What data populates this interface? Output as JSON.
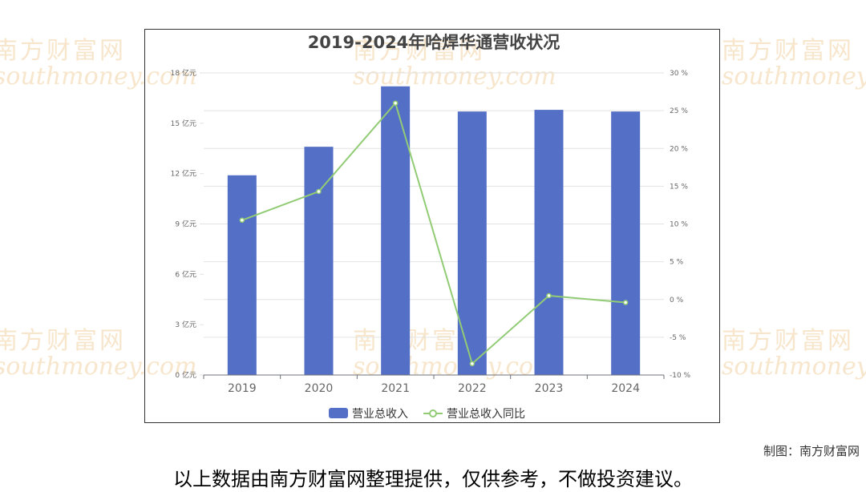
{
  "watermark": {
    "cn": "南方财富网",
    "en": "southmoney.com"
  },
  "chart_data": {
    "type": "bar",
    "title": "2019-2024年哈焊华通营收状况",
    "categories": [
      "2019",
      "2020",
      "2021",
      "2022",
      "2023",
      "2024"
    ],
    "series": [
      {
        "name": "营业总收入",
        "type": "bar",
        "axis": "left",
        "color": "#546fc6",
        "values": [
          11.9,
          13.6,
          17.2,
          15.7,
          15.8,
          15.7
        ]
      },
      {
        "name": "营业总收入同比",
        "type": "line",
        "axis": "right",
        "color": "#91cc75",
        "values": [
          10.5,
          14.3,
          26.0,
          -8.5,
          0.5,
          -0.4
        ]
      }
    ],
    "y_left": {
      "min": 0,
      "max": 18,
      "ticks": [
        0,
        3,
        6,
        9,
        12,
        15,
        18
      ],
      "tick_labels": [
        "0 亿元",
        "3 亿元",
        "6 亿元",
        "9 亿元",
        "12 亿元",
        "15 亿元",
        "18 亿元"
      ]
    },
    "y_right": {
      "min": -10,
      "max": 30,
      "ticks": [
        -10,
        -5,
        0,
        5,
        10,
        15,
        20,
        25,
        30
      ],
      "tick_labels": [
        "-10 %",
        "-5 %",
        "0 %",
        "5 %",
        "10 %",
        "15 %",
        "20 %",
        "25 %",
        "30 %"
      ]
    },
    "grid": true,
    "legend_position": "bottom"
  },
  "credit": "制图：南方财富网",
  "disclaimer": "以上数据由南方财富网整理提供，仅供参考，不做投资建议。"
}
